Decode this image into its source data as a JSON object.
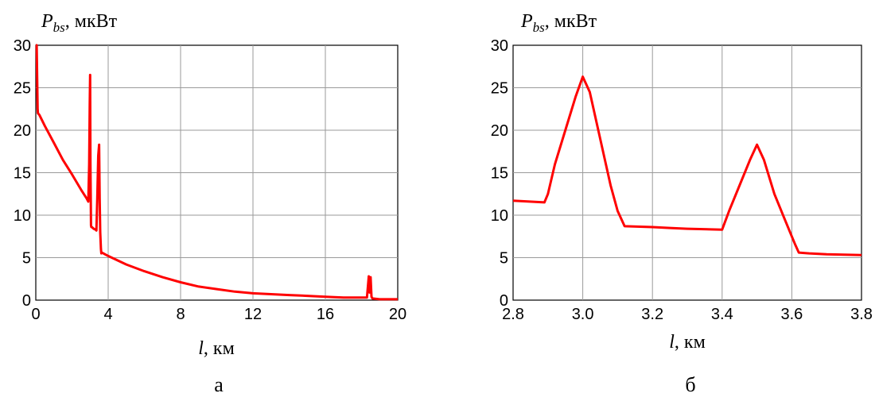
{
  "chart_data": [
    {
      "type": "line",
      "panel_label": "а",
      "ylabel_symbol": "P",
      "ylabel_sub": "bs",
      "ylabel_unit": ", мкВт",
      "xlabel_symbol": "l",
      "xlabel_unit": ", км",
      "xlim": [
        0,
        20
      ],
      "ylim": [
        0,
        30
      ],
      "xticks": [
        0,
        4,
        8,
        12,
        16,
        20
      ],
      "yticks": [
        0,
        5,
        10,
        15,
        20,
        25,
        30
      ],
      "grid": true,
      "line_color": "#ff0000",
      "x": [
        0.0,
        0.05,
        0.1,
        0.12,
        0.2,
        0.5,
        1.0,
        1.5,
        2.0,
        2.5,
        2.8,
        2.9,
        2.95,
        2.98,
        3.0,
        3.02,
        3.05,
        3.07,
        3.1,
        3.2,
        3.3,
        3.35,
        3.4,
        3.45,
        3.5,
        3.53,
        3.56,
        3.6,
        3.62,
        3.65,
        4.0,
        5.0,
        6.0,
        7.0,
        8.0,
        9.0,
        10.0,
        11.0,
        12.0,
        13.0,
        14.0,
        15.0,
        16.0,
        17.0,
        18.0,
        18.3,
        18.4,
        18.45,
        18.5,
        18.55,
        18.6,
        19.0,
        20.0
      ],
      "y": [
        30.0,
        30.0,
        22.5,
        22.0,
        21.8,
        20.5,
        18.5,
        16.5,
        14.8,
        13.0,
        12.0,
        11.6,
        16.0,
        23.0,
        26.5,
        16.0,
        8.8,
        8.6,
        8.6,
        8.4,
        8.3,
        8.2,
        12.0,
        17.0,
        18.3,
        12.0,
        8.0,
        6.0,
        5.5,
        5.6,
        5.2,
        4.2,
        3.4,
        2.7,
        2.1,
        1.6,
        1.3,
        1.0,
        0.8,
        0.7,
        0.6,
        0.5,
        0.4,
        0.3,
        0.3,
        0.3,
        2.8,
        0.9,
        2.7,
        0.4,
        0.2,
        0.1,
        0.1
      ]
    },
    {
      "type": "line",
      "panel_label": "б",
      "ylabel_symbol": "P",
      "ylabel_sub": "bs",
      "ylabel_unit": ", мкВт",
      "xlabel_symbol": "l",
      "xlabel_unit": ", км",
      "xlim": [
        2.8,
        3.8
      ],
      "ylim": [
        0,
        30
      ],
      "xticks": [
        2.8,
        3.0,
        3.2,
        3.4,
        3.6,
        3.8
      ],
      "yticks": [
        0,
        5,
        10,
        15,
        20,
        25,
        30
      ],
      "grid": true,
      "line_color": "#ff0000",
      "x": [
        2.8,
        2.89,
        2.9,
        2.92,
        2.95,
        2.98,
        3.0,
        3.02,
        3.05,
        3.08,
        3.1,
        3.12,
        3.2,
        3.25,
        3.3,
        3.4,
        3.42,
        3.45,
        3.48,
        3.5,
        3.52,
        3.55,
        3.58,
        3.6,
        3.61,
        3.62,
        3.65,
        3.7,
        3.8
      ],
      "y": [
        11.7,
        11.5,
        12.5,
        16.0,
        20.0,
        24.0,
        26.3,
        24.5,
        19.0,
        13.5,
        10.5,
        8.7,
        8.6,
        8.5,
        8.4,
        8.3,
        10.5,
        13.5,
        16.5,
        18.3,
        16.5,
        12.5,
        9.5,
        7.5,
        6.5,
        5.6,
        5.5,
        5.4,
        5.3
      ]
    }
  ]
}
